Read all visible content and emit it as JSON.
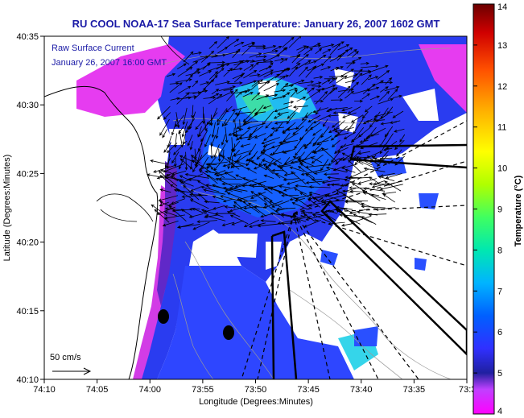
{
  "figure": {
    "title": "RU COOL  NOAA-17  Sea Surface Temperature:  January 26, 2007 1602 GMT",
    "annotation_line1": "Raw Surface Current",
    "annotation_line2": "January 26, 2007 16:00 GMT",
    "scale_label": "50 cm/s",
    "xlabel": "Longitude (Degrees:Minutes)",
    "ylabel": "Latitude (Degrees:Minutes)",
    "colorbar_label": "Temperature (°C)"
  },
  "colors": {
    "title_text": "#1a1aa6",
    "land": "#ffffff",
    "vectors": "#000000"
  },
  "chart_data": {
    "type": "heatmap",
    "x_ticks": [
      "74:10",
      "74:05",
      "74:00",
      "73:55",
      "73:50",
      "73:45",
      "73:40",
      "73:35",
      "73:3"
    ],
    "y_ticks": [
      "40:35",
      "40:30",
      "40:25",
      "40:20",
      "40:15",
      "40:10"
    ],
    "colorbar": {
      "min": 4,
      "max": 14,
      "ticks": [
        "14",
        "13",
        "12",
        "11",
        "10",
        "9",
        "8",
        "7",
        "6",
        "5",
        "4"
      ],
      "colors": [
        "#ff00ff",
        "#2020c0",
        "#0050ff",
        "#00b4ff",
        "#00e8b0",
        "#60ff60",
        "#d0ff00",
        "#ffe000",
        "#ffa000",
        "#ff4000",
        "#e00000",
        "#6b0000"
      ]
    },
    "vector_scale_cm_s": 50
  }
}
